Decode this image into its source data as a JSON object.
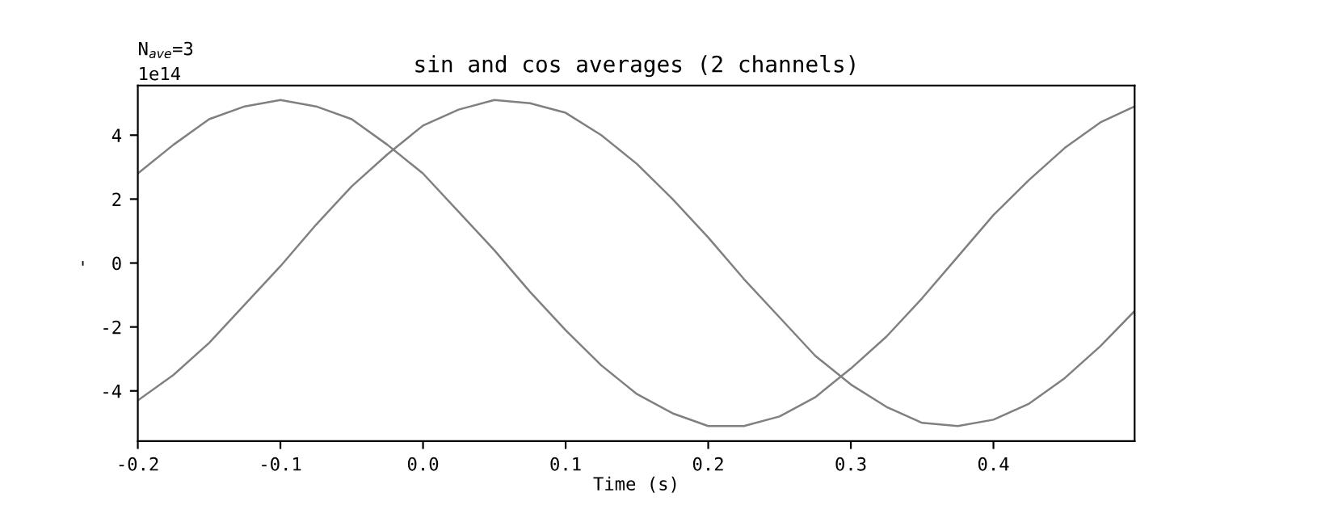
{
  "chart_data": {
    "type": "line",
    "title": "sin and cos averages (2 channels)",
    "xlabel": "Time (s)",
    "ylabel": "-",
    "annotations": [
      "N$_{ave}$=3",
      "1e14"
    ],
    "x": [
      -0.2,
      -0.175,
      -0.15,
      -0.125,
      -0.1,
      -0.075,
      -0.05,
      -0.025,
      0,
      0.025,
      0.05,
      0.075,
      0.1,
      0.125,
      0.15,
      0.175,
      0.2,
      0.225,
      0.25,
      0.275,
      0.3,
      0.325,
      0.35,
      0.375,
      0.4,
      0.425,
      0.45,
      0.475,
      0.499
    ],
    "series": [
      {
        "color": "#808080",
        "values": [
          2.8,
          3.7,
          4.5,
          4.9,
          5.1,
          4.9,
          4.5,
          3.7,
          2.8,
          1.6,
          0.4,
          -0.9,
          -2.1,
          -3.2,
          -4.1,
          -4.7,
          -5.1,
          -5.1,
          -4.8,
          -4.2,
          -3.3,
          -2.3,
          -1.1,
          0.2,
          1.5,
          2.6,
          3.6,
          4.4,
          4.9
        ]
      },
      {
        "color": "#808080",
        "values": [
          -4.3,
          -3.5,
          -2.5,
          -1.3,
          -0.1,
          1.2,
          2.4,
          3.4,
          4.3,
          4.8,
          5.1,
          5.0,
          4.7,
          4.0,
          3.1,
          2.0,
          0.8,
          -0.5,
          -1.7,
          -2.9,
          -3.8,
          -4.5,
          -5.0,
          -5.1,
          -4.9,
          -4.4,
          -3.6,
          -2.6,
          -1.5
        ]
      }
    ],
    "xlim": [
      -0.2,
      0.499
    ],
    "ylim": [
      -5.57,
      5.55
    ],
    "xticks": [
      {
        "value": -0.2,
        "label": "-0.2"
      },
      {
        "value": -0.1,
        "label": "-0.1"
      },
      {
        "value": 0,
        "label": "0.0"
      },
      0.1,
      0.2,
      0.3,
      0.4
    ],
    "yticks": [
      {
        "value": -4,
        "label": "-4"
      },
      {
        "value": -2,
        "label": "-2"
      },
      0,
      2,
      4
    ],
    "grid": false,
    "legend": false,
    "marker": "none",
    "line_style": "solid"
  }
}
